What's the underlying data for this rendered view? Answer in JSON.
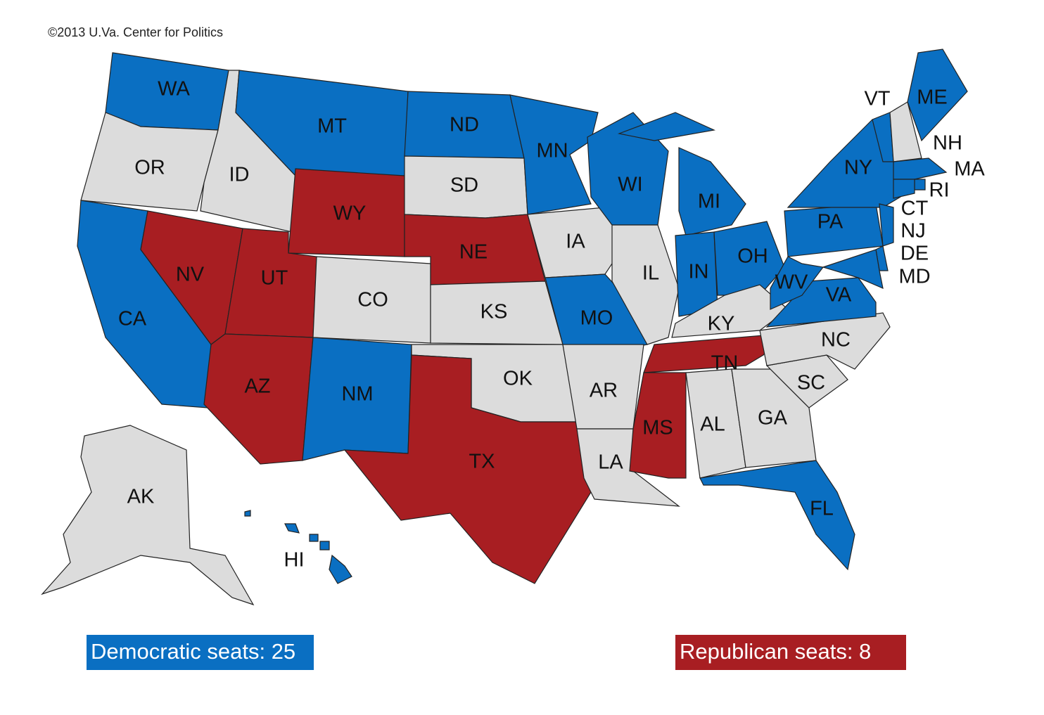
{
  "credit": "©2013 U.Va. Center for Politics",
  "states": [
    {
      "label": "WA",
      "color": "#0a6fc2"
    },
    {
      "label": "OR",
      "color": "#dcdcdc"
    },
    {
      "label": "CA",
      "color": "#0a6fc2"
    },
    {
      "label": "NV",
      "color": "#a81e22"
    },
    {
      "label": "ID",
      "color": "#dcdcdc"
    },
    {
      "label": "MT",
      "color": "#0a6fc2"
    },
    {
      "label": "WY",
      "color": "#a81e22"
    },
    {
      "label": "UT",
      "color": "#a81e22"
    },
    {
      "label": "AZ",
      "color": "#a81e22"
    },
    {
      "label": "CO",
      "color": "#dcdcdc"
    },
    {
      "label": "NM",
      "color": "#0a6fc2"
    },
    {
      "label": "ND",
      "color": "#0a6fc2"
    },
    {
      "label": "SD",
      "color": "#dcdcdc"
    },
    {
      "label": "NE",
      "color": "#a81e22"
    },
    {
      "label": "KS",
      "color": "#dcdcdc"
    },
    {
      "label": "OK",
      "color": "#dcdcdc"
    },
    {
      "label": "TX",
      "color": "#a81e22"
    },
    {
      "label": "MN",
      "color": "#0a6fc2"
    },
    {
      "label": "IA",
      "color": "#dcdcdc"
    },
    {
      "label": "MO",
      "color": "#0a6fc2"
    },
    {
      "label": "AR",
      "color": "#dcdcdc"
    },
    {
      "label": "LA",
      "color": "#dcdcdc"
    },
    {
      "label": "WI",
      "color": "#0a6fc2"
    },
    {
      "label": "IL",
      "color": "#dcdcdc"
    },
    {
      "label": "MI",
      "color": "#0a6fc2"
    },
    {
      "label": "IN",
      "color": "#0a6fc2"
    },
    {
      "label": "OH",
      "color": "#0a6fc2"
    },
    {
      "label": "KY",
      "color": "#dcdcdc"
    },
    {
      "label": "TN",
      "color": "#a81e22"
    },
    {
      "label": "MS",
      "color": "#a81e22"
    },
    {
      "label": "AL",
      "color": "#dcdcdc"
    },
    {
      "label": "GA",
      "color": "#dcdcdc"
    },
    {
      "label": "FL",
      "color": "#0a6fc2"
    },
    {
      "label": "SC",
      "color": "#dcdcdc"
    },
    {
      "label": "NC",
      "color": "#dcdcdc"
    },
    {
      "label": "VA",
      "color": "#0a6fc2"
    },
    {
      "label": "WV",
      "color": "#0a6fc2"
    },
    {
      "label": "PA",
      "color": "#0a6fc2"
    },
    {
      "label": "NY",
      "color": "#0a6fc2"
    },
    {
      "label": "VT",
      "color": "#0a6fc2"
    },
    {
      "label": "NH",
      "color": "#dcdcdc"
    },
    {
      "label": "ME",
      "color": "#0a6fc2"
    },
    {
      "label": "MA",
      "color": "#0a6fc2"
    },
    {
      "label": "RI",
      "color": "#0a6fc2"
    },
    {
      "label": "CT",
      "color": "#0a6fc2"
    },
    {
      "label": "NJ",
      "color": "#0a6fc2"
    },
    {
      "label": "DE",
      "color": "#0a6fc2"
    },
    {
      "label": "MD",
      "color": "#0a6fc2"
    },
    {
      "label": "AK",
      "color": "#dcdcdc"
    },
    {
      "label": "HI",
      "color": "#0a6fc2"
    }
  ],
  "legend": [
    {
      "text": "Democratic seats: 25",
      "color": "#0a6fc2"
    },
    {
      "text": "Republican seats: 8",
      "color": "#a81e22"
    }
  ]
}
